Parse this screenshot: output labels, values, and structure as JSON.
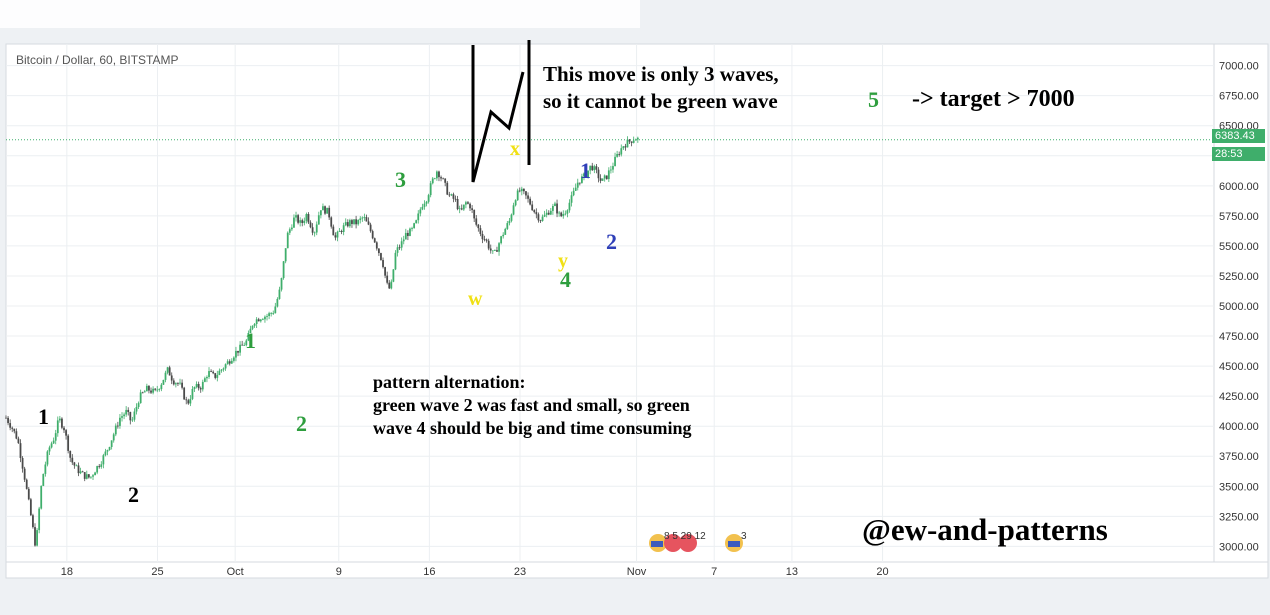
{
  "header": {
    "symbol_line": "Bitcoin / Dollar, 60, BITSTAMP"
  },
  "price_tag": {
    "last_price": "6383.43",
    "countdown": "28:53"
  },
  "chart_data": {
    "type": "line",
    "title": "Bitcoin / Dollar, 60, BITSTAMP",
    "ylim": [
      2870,
      7180
    ],
    "y_ticks": [
      "3000.00",
      "3250.00",
      "3500.00",
      "3750.00",
      "4000.00",
      "4250.00",
      "4500.00",
      "4750.00",
      "5000.00",
      "5250.00",
      "5500.00",
      "5750.00",
      "6000.00",
      "6250.00",
      "6500.00",
      "6750.00",
      "7000.00"
    ],
    "x_ticks": [
      {
        "label": "18",
        "day": 3
      },
      {
        "label": "25",
        "day": 10
      },
      {
        "label": "Oct",
        "day": 16
      },
      {
        "label": "9",
        "day": 24
      },
      {
        "label": "16",
        "day": 31
      },
      {
        "label": "23",
        "day": 38
      },
      {
        "label": "Nov",
        "day": 47
      },
      {
        "label": "7",
        "day": 53
      },
      {
        "label": "13",
        "day": 59
      },
      {
        "label": "20",
        "day": 66
      }
    ],
    "xlim": [
      -1.7,
      91.6
    ],
    "series": [
      {
        "x": [
          -1.7,
          -1.2,
          -0.8,
          -0.3,
          0.2,
          0.6,
          1.0,
          1.2,
          1.6,
          2.0,
          2.4,
          2.8,
          3.3,
          3.8,
          4.3,
          4.8,
          5.2,
          5.6,
          6.1,
          6.6,
          7.1,
          7.6,
          8.0,
          8.6,
          9.2,
          9.8,
          10.3,
          10.8,
          11.2,
          11.7,
          12.3,
          12.8,
          13.4,
          13.9,
          14.4,
          15.0,
          15.5,
          16.0,
          16.4,
          16.9,
          17.4,
          18.0,
          18.5,
          19.0,
          19.5,
          20.0,
          20.6,
          21.1,
          21.5,
          22.1,
          22.6,
          23.2,
          23.7,
          24.3,
          24.9,
          25.4,
          25.9,
          26.4,
          26.8,
          27.1,
          27.4,
          27.7,
          28.0,
          28.4,
          28.8,
          29.2,
          29.6,
          30.0,
          30.4,
          30.8,
          31.2,
          31.4,
          31.6,
          31.8,
          32.1,
          32.5,
          33.0,
          33.4,
          33.8,
          34.2,
          34.5,
          34.8,
          35.1,
          35.4,
          35.7,
          36.0,
          36.4,
          36.8,
          37.2,
          37.6,
          38.0,
          38.4,
          38.8,
          39.2,
          39.6,
          40.0,
          40.3,
          40.7,
          41.1,
          41.5,
          42.0,
          42.5,
          43.0,
          43.5,
          43.9,
          44.3,
          44.7,
          45.1,
          45.4,
          45.7,
          46.0,
          46.3,
          46.6,
          46.9,
          47.2
        ],
        "y": [
          4070,
          3980,
          3890,
          3600,
          3270,
          2990,
          3480,
          3620,
          3810,
          3900,
          4060,
          3980,
          3720,
          3640,
          3590,
          3570,
          3640,
          3700,
          3800,
          3930,
          4070,
          4120,
          4030,
          4240,
          4310,
          4280,
          4360,
          4470,
          4380,
          4350,
          4180,
          4320,
          4330,
          4450,
          4410,
          4480,
          4540,
          4610,
          4650,
          4710,
          4870,
          4910,
          4920,
          4960,
          5150,
          5580,
          5740,
          5680,
          5760,
          5610,
          5820,
          5780,
          5560,
          5650,
          5700,
          5690,
          5740,
          5640,
          5540,
          5450,
          5360,
          5180,
          5130,
          5450,
          5510,
          5600,
          5620,
          5700,
          5840,
          5900,
          6030,
          6080,
          6130,
          6090,
          6030,
          5920,
          5880,
          5770,
          5860,
          5830,
          5700,
          5640,
          5580,
          5540,
          5470,
          5420,
          5530,
          5630,
          5710,
          5900,
          5960,
          5920,
          5850,
          5770,
          5720,
          5760,
          5800,
          5830,
          5740,
          5790,
          5900,
          6040,
          6080,
          6170,
          6110,
          6030,
          6080,
          6160,
          6230,
          6290,
          6340,
          6360,
          6380,
          6400,
          6383
        ]
      }
    ]
  },
  "wave_labels": [
    {
      "text": "1",
      "color": "#000000"
    },
    {
      "text": "2",
      "color": "#000000"
    },
    {
      "text": "1",
      "color": "#2e9e3e"
    },
    {
      "text": "2",
      "color": "#2e9e3e"
    },
    {
      "text": "3",
      "color": "#2e9e3e"
    },
    {
      "text": "w",
      "color": "#f0e014"
    },
    {
      "text": "x",
      "color": "#f0e014"
    },
    {
      "text": "y",
      "color": "#f0e014"
    },
    {
      "text": "4",
      "color": "#2e9e3e"
    },
    {
      "text": "1",
      "color": "#2f3fb8"
    },
    {
      "text": "2",
      "color": "#2f3fb8"
    },
    {
      "text": "5",
      "color": "#2e9e3e"
    }
  ],
  "annotations": {
    "waves_line1": "This move is only 3 waves,",
    "waves_line2": "so it cannot be green wave",
    "target": "-> target > 7000",
    "alt_line1": "pattern alternation:",
    "alt_line2": "green wave 2 was fast and small, so green",
    "alt_line3": "wave 4 should be big and time consuming",
    "signature": "@ew-and-patterns"
  },
  "event_badges": {
    "group_text": "8 5 29 12",
    "single_text": "3"
  },
  "colors": {
    "up": "#3fae6b",
    "down": "#4a4a4a",
    "last_price_line": "#3fae6b",
    "grid": "#eceff2"
  }
}
